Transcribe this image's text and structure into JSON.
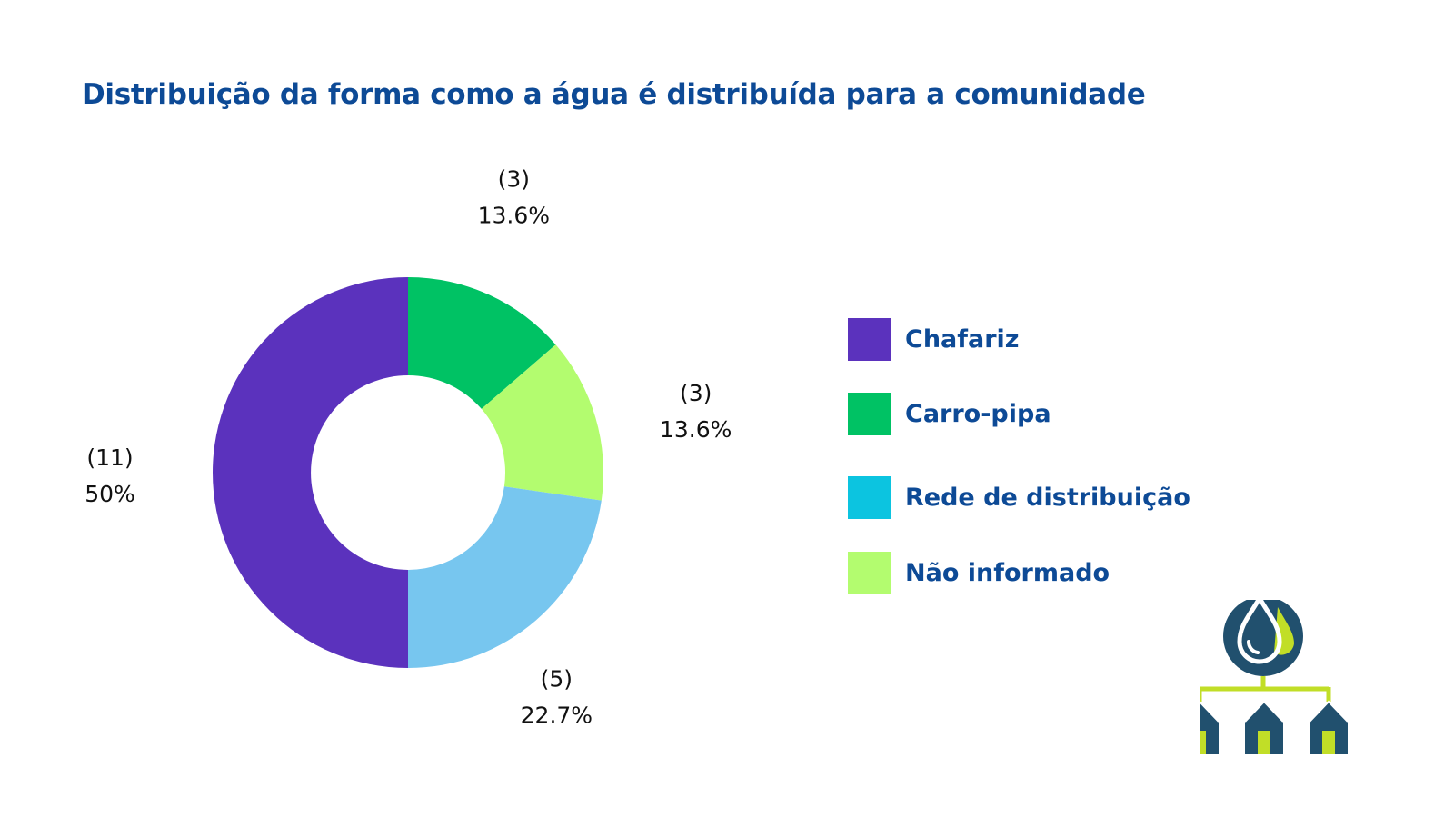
{
  "title": "Distribuição da forma como a água é distribuída para a comunidade",
  "chart_data": {
    "type": "donut",
    "title": "Distribuição da forma como a água é distribuída para a comunidade",
    "slices": [
      {
        "name": "Carro-pipa",
        "count": 3,
        "count_label": "(3)",
        "percent": 13.6,
        "percent_label": "13.6%",
        "color": "#00c264"
      },
      {
        "name": "Não informado",
        "count": 3,
        "count_label": "(3)",
        "percent": 13.6,
        "percent_label": "13.6%",
        "color": "#b3fc6f"
      },
      {
        "name": "Rede de distribuição",
        "count": 5,
        "count_label": "(5)",
        "percent": 22.7,
        "percent_label": "22.7%",
        "color": "#77c6ef"
      },
      {
        "name": "Chafariz",
        "count": 11,
        "count_label": "(11)",
        "percent": 50,
        "percent_label": "50%",
        "color": "#5b32bd"
      }
    ],
    "legend_placement": "right"
  },
  "legend": [
    {
      "label": "Chafariz",
      "color": "#5b32bd"
    },
    {
      "label": "Carro-pipa",
      "color": "#00c264"
    },
    {
      "label": "Rede de distribuição",
      "color": "#0cc4e0"
    },
    {
      "label": "Não informado",
      "color": "#b3fc6f"
    }
  ],
  "logo": {
    "icon": "water-distribution-icon",
    "primary_color": "#21506e",
    "accent_color": "#c1de27"
  }
}
